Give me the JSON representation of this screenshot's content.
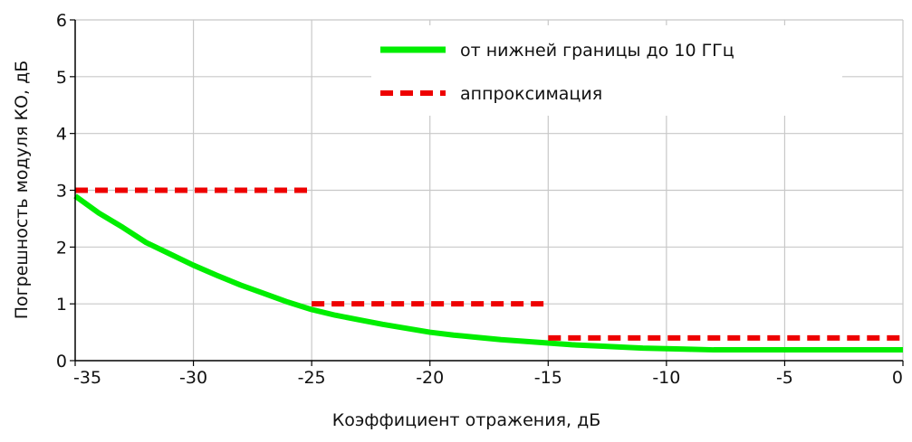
{
  "chart_data": {
    "type": "line",
    "title": "",
    "xlabel": "Коэффициент отражения, дБ",
    "ylabel": "Погрешность модуля  КО, дБ",
    "xlim": [
      -35,
      0
    ],
    "ylim": [
      0,
      6
    ],
    "x_ticks": [
      -35,
      -30,
      -25,
      -20,
      -15,
      -10,
      -5,
      0
    ],
    "y_ticks": [
      0,
      1,
      2,
      3,
      4,
      5,
      6
    ],
    "grid": true,
    "legend_position": "top-right",
    "series": [
      {
        "name": "от нижней границы до 10 ГГц",
        "color": "#00ee00",
        "style": "solid",
        "x": [
          -35,
          -34,
          -33,
          -32,
          -31,
          -30,
          -29,
          -28,
          -27,
          -26,
          -25,
          -24,
          -23,
          -22,
          -21,
          -20,
          -19,
          -18,
          -17,
          -16,
          -15,
          -14,
          -13,
          -12,
          -11,
          -10,
          -9,
          -8,
          -7,
          -6,
          -5,
          -4,
          -3,
          -2,
          -1,
          0
        ],
        "y": [
          2.9,
          2.6,
          2.35,
          2.08,
          1.88,
          1.68,
          1.5,
          1.33,
          1.18,
          1.03,
          0.9,
          0.8,
          0.72,
          0.64,
          0.57,
          0.5,
          0.45,
          0.41,
          0.37,
          0.34,
          0.31,
          0.28,
          0.26,
          0.24,
          0.22,
          0.21,
          0.2,
          0.19,
          0.19,
          0.19,
          0.19,
          0.19,
          0.19,
          0.19,
          0.19,
          0.19
        ]
      },
      {
        "name": "аппроксимация",
        "color": "#ee0000",
        "style": "dashed",
        "segments": [
          {
            "x": [
              -35,
              -25
            ],
            "y": [
              3,
              3
            ]
          },
          {
            "x": [
              -25,
              -15
            ],
            "y": [
              1,
              1
            ]
          },
          {
            "x": [
              -15,
              0
            ],
            "y": [
              0.4,
              0.4
            ]
          }
        ]
      }
    ]
  }
}
